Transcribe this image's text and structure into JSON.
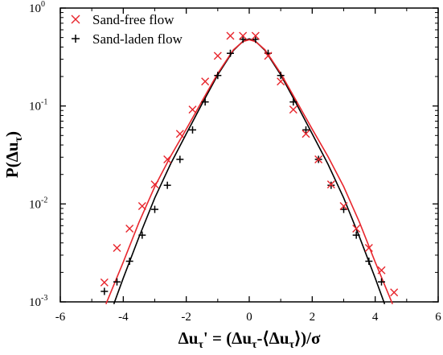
{
  "chart_data": {
    "type": "scatter",
    "ylabel": {
      "main": "P(Δu",
      "sub": "τ",
      "tail": ")"
    },
    "xlabel": {
      "p1": "Δu",
      "s1": "τ",
      "p2": "' = (Δu",
      "s2": "τ",
      "p3": "-⟨Δu",
      "s3": "τ",
      "p4": "⟩)/σ"
    },
    "xlim": [
      -6,
      6
    ],
    "ylim": [
      0.001,
      1
    ],
    "y_scale": "log",
    "x_ticks": [
      "-6",
      "-4",
      "-2",
      "0",
      "2",
      "4",
      "6"
    ],
    "y_ticks": [
      {
        "base": "10",
        "exp": "0"
      },
      {
        "base": "10",
        "exp": "-1"
      },
      {
        "base": "10",
        "exp": "-2"
      },
      {
        "base": "10",
        "exp": "-3"
      }
    ],
    "legend_position": "top-left",
    "grid": false,
    "series": [
      {
        "name": "Sand-free flow",
        "marker": "x",
        "color": "#e8262d",
        "points": [
          [
            -4.6,
            0.00158
          ],
          [
            -4.2,
            0.00355
          ],
          [
            -3.8,
            0.0056
          ],
          [
            -3.4,
            0.0095
          ],
          [
            -3.0,
            0.0158
          ],
          [
            -2.6,
            0.0285
          ],
          [
            -2.2,
            0.052
          ],
          [
            -1.8,
            0.092
          ],
          [
            -1.4,
            0.178
          ],
          [
            -1.0,
            0.325
          ],
          [
            -0.6,
            0.52
          ],
          [
            -0.2,
            0.52
          ],
          [
            0.2,
            0.52
          ],
          [
            0.6,
            0.325
          ],
          [
            1.0,
            0.178
          ],
          [
            1.4,
            0.092
          ],
          [
            1.8,
            0.052
          ],
          [
            2.2,
            0.0285
          ],
          [
            2.6,
            0.0158
          ],
          [
            3.0,
            0.0095
          ],
          [
            3.4,
            0.0056
          ],
          [
            3.8,
            0.00355
          ],
          [
            4.2,
            0.0021
          ],
          [
            4.6,
            0.00125
          ]
        ],
        "fit": [
          [
            -4.55,
            0.00095
          ],
          [
            -4.0,
            0.00255
          ],
          [
            -3.5,
            0.0065
          ],
          [
            -3.0,
            0.015
          ],
          [
            -2.5,
            0.0305
          ],
          [
            -2.0,
            0.058
          ],
          [
            -1.5,
            0.112
          ],
          [
            -1.0,
            0.215
          ],
          [
            -0.5,
            0.375
          ],
          [
            -0.2,
            0.455
          ],
          [
            0.0,
            0.475
          ],
          [
            0.2,
            0.455
          ],
          [
            0.5,
            0.375
          ],
          [
            1.0,
            0.215
          ],
          [
            1.5,
            0.112
          ],
          [
            2.0,
            0.058
          ],
          [
            2.5,
            0.0305
          ],
          [
            3.0,
            0.015
          ],
          [
            3.5,
            0.0065
          ],
          [
            4.0,
            0.00255
          ],
          [
            4.55,
            0.00095
          ]
        ]
      },
      {
        "name": "Sand-laden flow",
        "marker": "+",
        "color": "#000000",
        "points": [
          [
            -4.6,
            0.00128
          ],
          [
            -4.2,
            0.0016
          ],
          [
            -3.8,
            0.0026
          ],
          [
            -3.4,
            0.0048
          ],
          [
            -3.0,
            0.0088
          ],
          [
            -2.6,
            0.0155
          ],
          [
            -2.2,
            0.0285
          ],
          [
            -1.8,
            0.057
          ],
          [
            -1.4,
            0.11
          ],
          [
            -1.0,
            0.205
          ],
          [
            -0.6,
            0.345
          ],
          [
            -0.2,
            0.48
          ],
          [
            0.2,
            0.48
          ],
          [
            0.6,
            0.345
          ],
          [
            1.0,
            0.205
          ],
          [
            1.4,
            0.11
          ],
          [
            1.8,
            0.057
          ],
          [
            2.2,
            0.0285
          ],
          [
            2.6,
            0.0155
          ],
          [
            3.0,
            0.0088
          ],
          [
            3.4,
            0.0048
          ],
          [
            3.8,
            0.0026
          ],
          [
            4.2,
            0.0016
          ]
        ],
        "fit": [
          [
            -4.3,
            0.00095
          ],
          [
            -4.0,
            0.00175
          ],
          [
            -3.5,
            0.0046
          ],
          [
            -3.0,
            0.0115
          ],
          [
            -2.5,
            0.0255
          ],
          [
            -2.0,
            0.052
          ],
          [
            -1.5,
            0.105
          ],
          [
            -1.0,
            0.208
          ],
          [
            -0.5,
            0.37
          ],
          [
            -0.2,
            0.458
          ],
          [
            0.0,
            0.485
          ],
          [
            0.2,
            0.458
          ],
          [
            0.5,
            0.37
          ],
          [
            1.0,
            0.208
          ],
          [
            1.5,
            0.105
          ],
          [
            2.0,
            0.052
          ],
          [
            2.5,
            0.0255
          ],
          [
            3.0,
            0.0115
          ],
          [
            3.5,
            0.0046
          ],
          [
            4.0,
            0.00175
          ],
          [
            4.3,
            0.00095
          ]
        ]
      }
    ]
  }
}
